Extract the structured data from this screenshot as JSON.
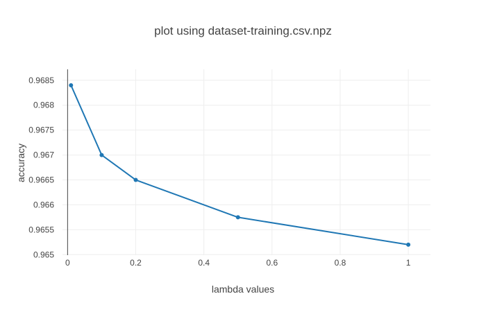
{
  "chart_data": {
    "type": "line",
    "title": "plot using dataset-training.csv.npz",
    "xlabel": "lambda values",
    "ylabel": "accuracy",
    "xlim": [
      -0.015,
      1.065
    ],
    "ylim": [
      0.96499,
      0.96872
    ],
    "x_ticks": [
      0,
      0.2,
      0.4,
      0.6,
      0.8,
      1
    ],
    "x_tick_labels": [
      "0",
      "0.2",
      "0.4",
      "0.6",
      "0.8",
      "1"
    ],
    "y_ticks": [
      0.965,
      0.9655,
      0.966,
      0.9665,
      0.967,
      0.9675,
      0.968,
      0.9685
    ],
    "y_tick_labels": [
      "0.965",
      "0.9655",
      "0.966",
      "0.9665",
      "0.967",
      "0.9675",
      "0.968",
      "0.9685"
    ],
    "grid": true,
    "legend": "none",
    "x": [
      0.01,
      0.1,
      0.2,
      0.5,
      1
    ],
    "series": [
      {
        "values": [
          0.9684,
          0.967,
          0.9665,
          0.96575,
          0.9652
        ],
        "color": "#1f77b4"
      }
    ]
  }
}
